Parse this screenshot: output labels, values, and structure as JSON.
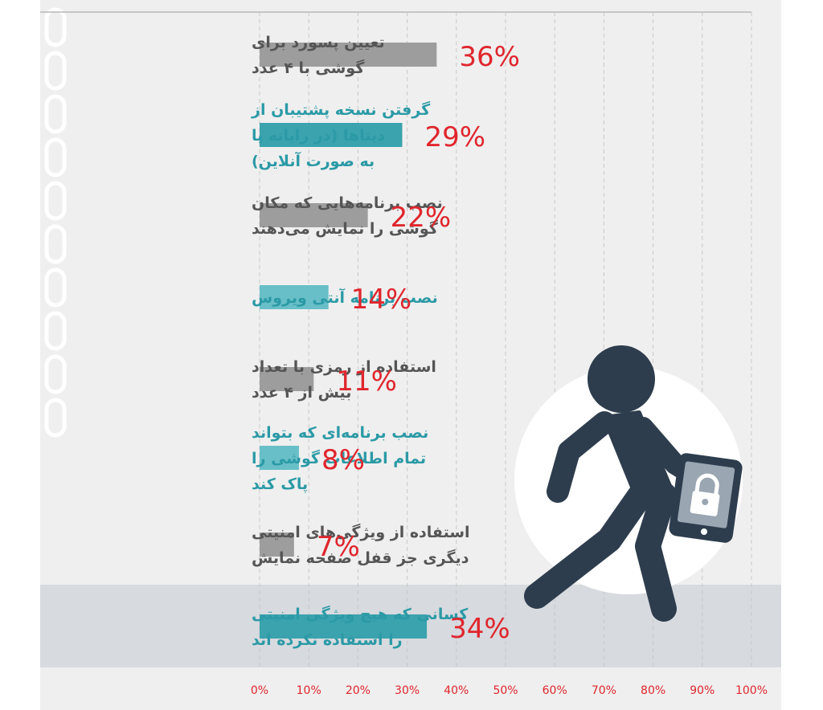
{
  "chart_data": {
    "type": "bar",
    "orientation": "horizontal",
    "categories": [
      "تعیین پسورد برای\nگوشی با ۴ عدد",
      "گرفتن نسخه پشتیبان از\nدیتاها (در رایانه یا\nبه صورت آنلاین)",
      "نصب برنامه‌هایی که مکان\nگوشی را نمایش می‌دهند",
      "نصب برنامه آنتی ویروس",
      "استفاده از رمزی با تعداد\nبیش از ۴ عدد",
      "نصب برنامه‌ای که بتواند\nتمام اطلاعات گوشی را\nپاک کند",
      "استفاده از ویژگی‌های امنیتی\nدیگری جز قفل صفحه نمایش",
      "کسانی که هیچ ویژگی امنیتی\nرا استفاده نکرده اند"
    ],
    "values": [
      36,
      29,
      22,
      14,
      11,
      8,
      7,
      34
    ],
    "value_labels": [
      "36%",
      "29%",
      "22%",
      "14%",
      "11%",
      "8%",
      "7%",
      "34%"
    ],
    "bar_colors": [
      "#9d9d9d",
      "#3aa3ad",
      "#9d9d9d",
      "#68bfc8",
      "#9d9d9d",
      "#68bfc8",
      "#9d9d9d",
      "#3aa3ad"
    ],
    "label_colors": [
      "#555555",
      "#2b9aa6",
      "#555555",
      "#2b9aa6",
      "#555555",
      "#2b9aa6",
      "#555555",
      "#2b9aa6"
    ],
    "value_label_color": "#e0262d",
    "highlighted_category_index": 7,
    "x_ticks": [
      "0%",
      "10%",
      "20%",
      "30%",
      "40%",
      "50%",
      "60%",
      "70%",
      "80%",
      "90%",
      "100%"
    ],
    "xlim": [
      0,
      100
    ],
    "title": "",
    "xlabel": "",
    "ylabel": "",
    "grid": "vertical dashed",
    "legend": "none"
  },
  "colors": {
    "background": "#efefef",
    "highlight_band": "#d7dadf",
    "grid": "#c8c8c8",
    "tick_label": "#e0262d",
    "figure": "#2e3d4d",
    "figure_circle": "#ffffff",
    "chain": "#ffffff"
  },
  "illustration": {
    "figure": "walking-person-icon",
    "device": "smartphone-icon",
    "lock": "padlock-icon",
    "chain": "chain-icon"
  }
}
